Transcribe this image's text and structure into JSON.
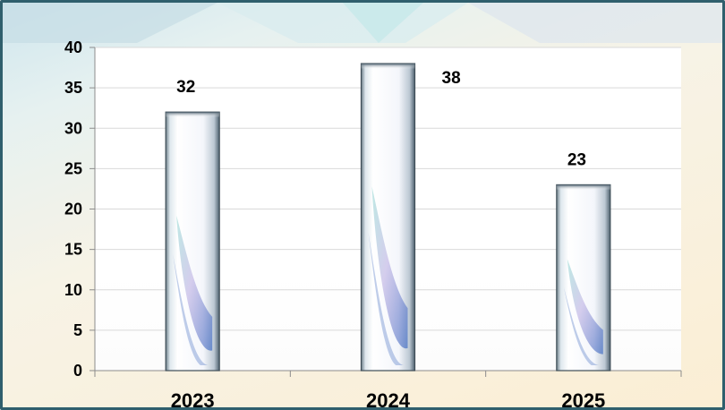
{
  "chart_data": {
    "type": "bar",
    "categories": [
      "2023",
      "2024",
      "2025"
    ],
    "values": [
      32,
      38,
      23
    ],
    "data_labels": [
      "32",
      "38",
      "23"
    ],
    "yticks": [
      "0",
      "5",
      "10",
      "15",
      "20",
      "25",
      "30",
      "35",
      "40"
    ],
    "ylim": [
      0,
      40
    ],
    "grid": true,
    "legend": "none",
    "title": "",
    "xlabel": "",
    "ylabel": ""
  },
  "colors": {
    "frame_border": "#2f5f6d",
    "gridline": "#d9d9d9",
    "axis": "#8c8c8c",
    "bar_fill_light": "#ffffff",
    "bar_fill_blue": "#4a74c4",
    "bar_fill_teal": "#7fd1c9",
    "bar_fill_violet": "#b6a8e0"
  }
}
